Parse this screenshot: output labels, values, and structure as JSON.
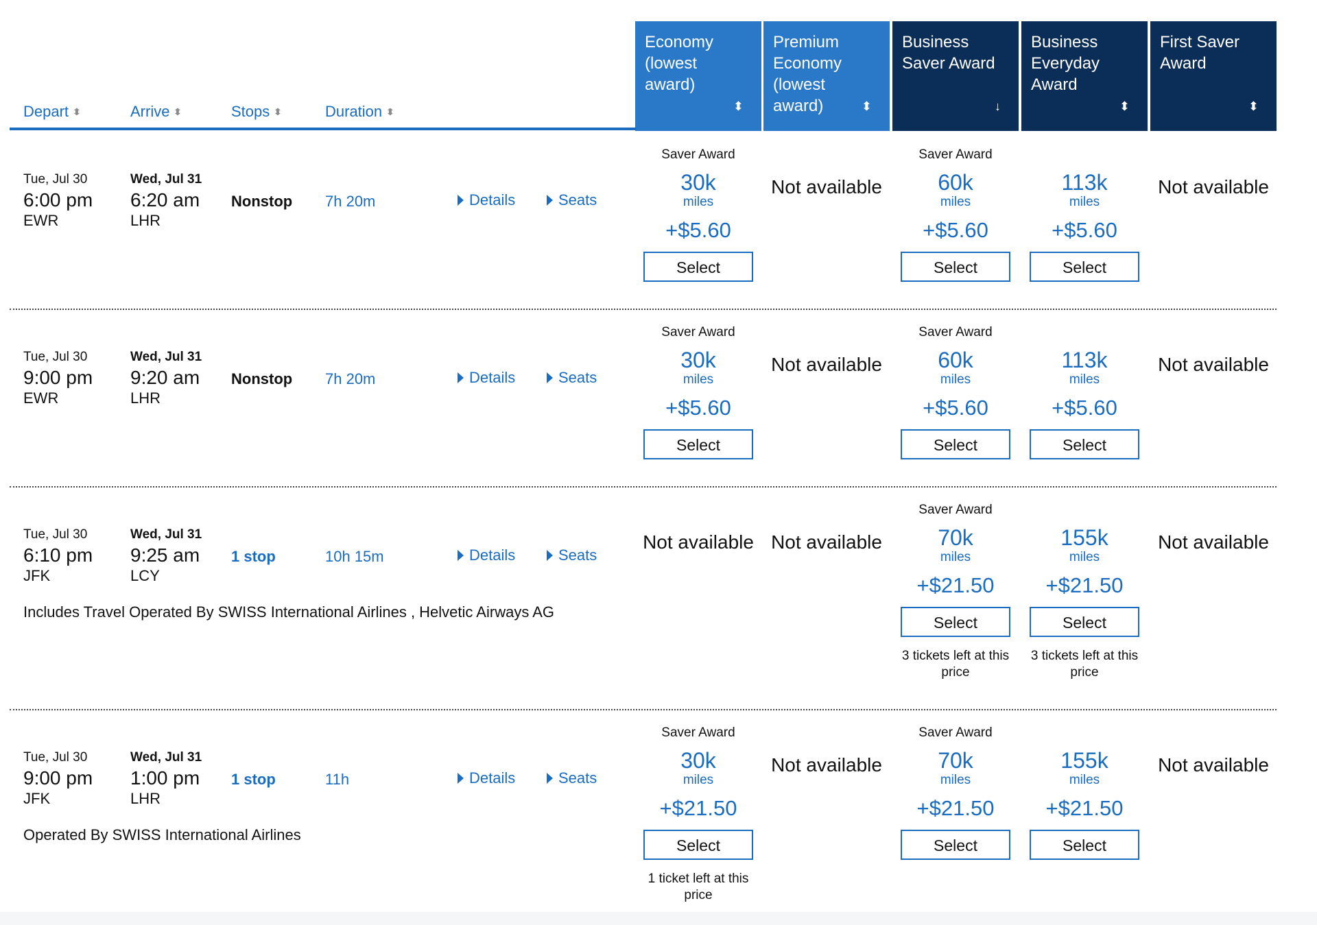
{
  "header": {
    "sort_columns": [
      "Depart",
      "Arrive",
      "Stops",
      "Duration"
    ],
    "fare_columns": [
      {
        "label": "Economy (lowest award)",
        "lines": [
          "Economy",
          "(lowest",
          "award)"
        ],
        "sort_icon": "sort-updown-icon"
      },
      {
        "label": "Premium Economy (lowest award)",
        "lines": [
          "Premium",
          "Economy",
          "(lowest",
          "award)"
        ],
        "sort_icon": "sort-updown-icon"
      },
      {
        "label": "Business Saver Award",
        "lines": [
          "Business",
          "Saver Award"
        ],
        "sort_icon": "sort-down-arrow-icon"
      },
      {
        "label": "Business Everyday Award",
        "lines": [
          "Business",
          "Everyday",
          "Award"
        ],
        "sort_icon": "sort-updown-icon"
      },
      {
        "label": "First Saver Award",
        "lines": [
          "First Saver",
          "Award"
        ],
        "sort_icon": "sort-updown-icon"
      }
    ]
  },
  "labels": {
    "details": "Details",
    "seats": "Seats",
    "select": "Select",
    "miles": "miles",
    "not_available": "Not available",
    "saver_award": "Saver Award"
  },
  "flights": [
    {
      "depart_date": "Tue, Jul 30",
      "depart_time": "6:00 pm",
      "depart_airport": "EWR",
      "arrive_date": "Wed, Jul 31",
      "arrive_time": "6:20 am",
      "arrive_airport": "LHR",
      "stops": "Nonstop",
      "duration": "7h 20m",
      "operated_by": "",
      "fares": [
        {
          "available": true,
          "saver": "Saver Award",
          "miles": "30k",
          "tax": "+$5.60",
          "tickets_left": ""
        },
        {
          "available": false
        },
        {
          "available": true,
          "saver": "Saver Award",
          "miles": "60k",
          "tax": "+$5.60",
          "tickets_left": ""
        },
        {
          "available": true,
          "saver": "",
          "miles": "113k",
          "tax": "+$5.60",
          "tickets_left": ""
        },
        {
          "available": false
        }
      ]
    },
    {
      "depart_date": "Tue, Jul 30",
      "depart_time": "9:00 pm",
      "depart_airport": "EWR",
      "arrive_date": "Wed, Jul 31",
      "arrive_time": "9:20 am",
      "arrive_airport": "LHR",
      "stops": "Nonstop",
      "duration": "7h 20m",
      "operated_by": "",
      "fares": [
        {
          "available": true,
          "saver": "Saver Award",
          "miles": "30k",
          "tax": "+$5.60",
          "tickets_left": ""
        },
        {
          "available": false
        },
        {
          "available": true,
          "saver": "Saver Award",
          "miles": "60k",
          "tax": "+$5.60",
          "tickets_left": ""
        },
        {
          "available": true,
          "saver": "",
          "miles": "113k",
          "tax": "+$5.60",
          "tickets_left": ""
        },
        {
          "available": false
        }
      ]
    },
    {
      "depart_date": "Tue, Jul 30",
      "depart_time": "6:10 pm",
      "depart_airport": "JFK",
      "arrive_date": "Wed, Jul 31",
      "arrive_time": "9:25 am",
      "arrive_airport": "LCY",
      "stops": "1 stop",
      "duration": "10h 15m",
      "operated_by": "Includes Travel Operated By SWISS International Airlines , Helvetic Airways AG",
      "fares": [
        {
          "available": false
        },
        {
          "available": false
        },
        {
          "available": true,
          "saver": "Saver Award",
          "miles": "70k",
          "tax": "+$21.50",
          "tickets_left": "3 tickets left at this price"
        },
        {
          "available": true,
          "saver": "",
          "miles": "155k",
          "tax": "+$21.50",
          "tickets_left": "3 tickets left at this price"
        },
        {
          "available": false
        }
      ]
    },
    {
      "depart_date": "Tue, Jul 30",
      "depart_time": "9:00 pm",
      "depart_airport": "JFK",
      "arrive_date": "Wed, Jul 31",
      "arrive_time": "1:00 pm",
      "arrive_airport": "LHR",
      "stops": "1 stop",
      "duration": "11h",
      "operated_by": "Operated By SWISS International Airlines",
      "fares": [
        {
          "available": true,
          "saver": "Saver Award",
          "miles": "30k",
          "tax": "+$21.50",
          "tickets_left": "1 ticket left at this price"
        },
        {
          "available": false
        },
        {
          "available": true,
          "saver": "Saver Award",
          "miles": "70k",
          "tax": "+$21.50",
          "tickets_left": ""
        },
        {
          "available": true,
          "saver": "",
          "miles": "155k",
          "tax": "+$21.50",
          "tickets_left": ""
        },
        {
          "available": false
        }
      ]
    }
  ]
}
